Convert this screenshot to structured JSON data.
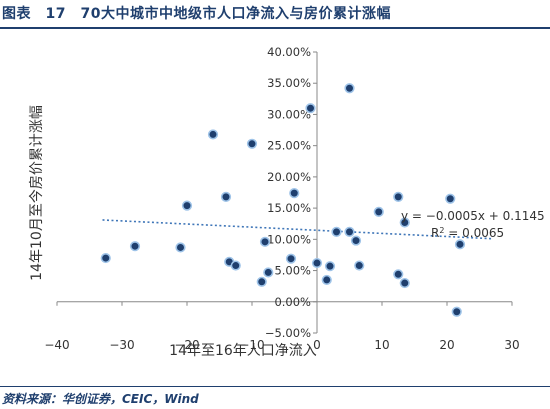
{
  "header": {
    "title": "图表　17　70大中城市中地级市人口净流入与房价累计涨幅"
  },
  "footer": {
    "source": "资料来源：华创证券，CEIC，Wind"
  },
  "colors": {
    "brand": "#1f3f6e",
    "point_fill": "#1f3f6e",
    "point_stroke": "#9ec3e8",
    "trendline": "#3f76b8",
    "axis": "#888888",
    "text": "#333333"
  },
  "chart_data": {
    "type": "scatter",
    "title": "",
    "xlabel": "14年至16年人口净流入",
    "ylabel": "14年10月至今房价累计涨幅",
    "xlim": [
      -40,
      30
    ],
    "ylim": [
      -0.05,
      0.4
    ],
    "xticks": [
      -40,
      -30,
      -20,
      -10,
      0,
      10,
      20,
      30
    ],
    "yticks": [
      -0.05,
      0.0,
      0.05,
      0.1,
      0.15,
      0.2,
      0.25,
      0.3,
      0.35,
      0.4
    ],
    "xtick_labels": [
      "−40",
      "−30",
      "−20",
      "−10",
      "0",
      "10",
      "20",
      "30"
    ],
    "ytick_labels": [
      "−5.00%",
      "0.00%",
      "5.00%",
      "10.00%",
      "15.00%",
      "20.00%",
      "25.00%",
      "30.00%",
      "35.00%",
      "40.00%"
    ],
    "grid": false,
    "points": [
      {
        "x": -32.5,
        "y": 0.07
      },
      {
        "x": -28,
        "y": 0.089
      },
      {
        "x": -21,
        "y": 0.087
      },
      {
        "x": -20,
        "y": 0.154
      },
      {
        "x": -16,
        "y": 0.268
      },
      {
        "x": -14,
        "y": 0.168
      },
      {
        "x": -13.5,
        "y": 0.064
      },
      {
        "x": -12.5,
        "y": 0.058
      },
      {
        "x": -10,
        "y": 0.253
      },
      {
        "x": -8.5,
        "y": 0.032
      },
      {
        "x": -8,
        "y": 0.096
      },
      {
        "x": -7.5,
        "y": 0.047
      },
      {
        "x": -4,
        "y": 0.069
      },
      {
        "x": -3.5,
        "y": 0.174
      },
      {
        "x": -1,
        "y": 0.31
      },
      {
        "x": 0,
        "y": 0.062
      },
      {
        "x": 1.5,
        "y": 0.035
      },
      {
        "x": 2,
        "y": 0.057
      },
      {
        "x": 3,
        "y": 0.112
      },
      {
        "x": 5,
        "y": 0.112
      },
      {
        "x": 5,
        "y": 0.342
      },
      {
        "x": 6,
        "y": 0.098
      },
      {
        "x": 6.5,
        "y": 0.058
      },
      {
        "x": 9.5,
        "y": 0.144
      },
      {
        "x": 12.5,
        "y": 0.168
      },
      {
        "x": 12.5,
        "y": 0.044
      },
      {
        "x": 13.5,
        "y": 0.03
      },
      {
        "x": 13.5,
        "y": 0.127
      },
      {
        "x": 20.5,
        "y": 0.165
      },
      {
        "x": 21.5,
        "y": -0.016
      },
      {
        "x": 22,
        "y": 0.092
      }
    ],
    "trendline": {
      "type": "linear",
      "slope": -0.0005,
      "intercept": 0.1145,
      "equation": "y = −0.0005x + 0.1145",
      "r2_prefix": "R",
      "r2_sup": "2",
      "r2_value": " = 0.0065",
      "x_range": [
        -33,
        27
      ]
    }
  }
}
